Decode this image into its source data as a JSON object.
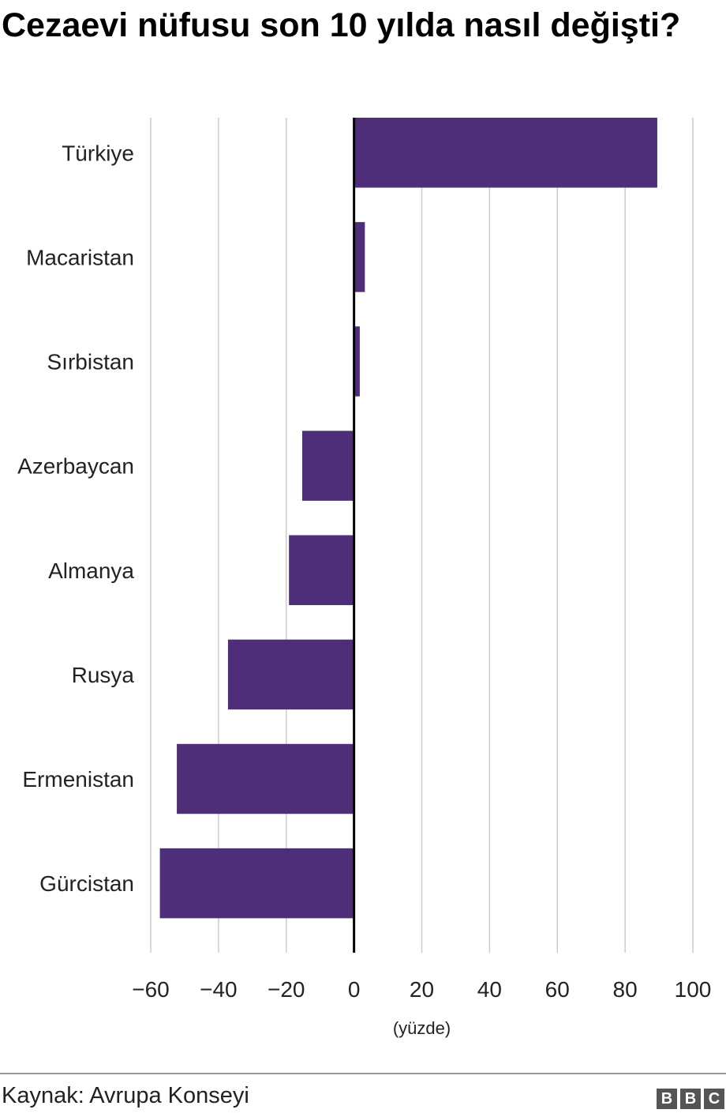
{
  "title": "Cezaevi nüfusu son 10 yılda nasıl değişti?",
  "source": "Kaynak: Avrupa Konseyi",
  "logo": [
    "B",
    "B",
    "C"
  ],
  "colors": {
    "bar": "#4e2e78",
    "grid": "#cccccc",
    "zero": "#000000"
  },
  "chart_data": {
    "type": "bar",
    "orientation": "horizontal",
    "categories": [
      "Türkiye",
      "Macaristan",
      "Sırbistan",
      "Azerbaycan",
      "Almanya",
      "Rusya",
      "Ermenistan",
      "Gürcistan"
    ],
    "values": [
      89.5,
      3.2,
      1.7,
      -15.3,
      -19.2,
      -37.2,
      -52.3,
      -57.3
    ],
    "xlabel": "(yüzde)",
    "xlim": [
      -60,
      100
    ],
    "xticks": [
      -60,
      -40,
      -20,
      0,
      20,
      40,
      60,
      80,
      100
    ],
    "xtick_labels": [
      "−60",
      "−40",
      "−20",
      "0",
      "20",
      "40",
      "60",
      "80",
      "100"
    ],
    "grid": true
  }
}
